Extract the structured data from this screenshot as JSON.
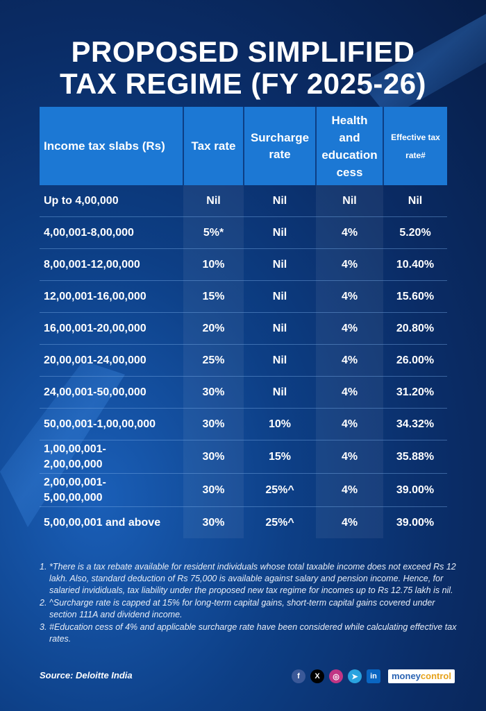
{
  "title": {
    "line1": "PROPOSED SIMPLIFIED",
    "line2": "TAX REGIME (FY 2025-26)"
  },
  "table": {
    "headers": {
      "slab": "Income tax slabs (Rs)",
      "rate": "Tax rate",
      "surcharge_line1": "Surcharge",
      "surcharge_line2": "rate",
      "cess_line1": "Health",
      "cess_line2": "and",
      "cess_line3": "education",
      "cess_line4": "cess",
      "effective_line1": "Effective tax",
      "effective_line2": "rate#"
    },
    "rows": [
      {
        "slab": "Up to 4,00,000",
        "rate": "Nil",
        "surcharge": "Nil",
        "cess": "Nil",
        "effective": "Nil"
      },
      {
        "slab": "4,00,001-8,00,000",
        "rate": "5%*",
        "surcharge": "Nil",
        "cess": "4%",
        "effective": "5.20%"
      },
      {
        "slab": "8,00,001-12,00,000",
        "rate": "10%",
        "surcharge": "Nil",
        "cess": "4%",
        "effective": "10.40%"
      },
      {
        "slab": "12,00,001-16,00,000",
        "rate": "15%",
        "surcharge": "Nil",
        "cess": "4%",
        "effective": "15.60%"
      },
      {
        "slab": "16,00,001-20,00,000",
        "rate": "20%",
        "surcharge": "Nil",
        "cess": "4%",
        "effective": "20.80%"
      },
      {
        "slab": "20,00,001-24,00,000",
        "rate": "25%",
        "surcharge": "Nil",
        "cess": "4%",
        "effective": "26.00%"
      },
      {
        "slab": "24,00,001-50,00,000",
        "rate": "30%",
        "surcharge": "Nil",
        "cess": "4%",
        "effective": "31.20%"
      },
      {
        "slab": "50,00,001-1,00,00,000",
        "rate": "30%",
        "surcharge": "10%",
        "cess": "4%",
        "effective": "34.32%"
      },
      {
        "slab_line1": "1,00,00,001-",
        "slab_line2": "2,00,00,000",
        "rate": "30%",
        "surcharge": "15%",
        "cess": "4%",
        "effective": "35.88%"
      },
      {
        "slab_line1": "2,00,00,001-",
        "slab_line2": "5,00,00,000",
        "rate": "30%",
        "surcharge": "25%^",
        "cess": "4%",
        "effective": "39.00%"
      },
      {
        "slab": "5,00,00,001 and above",
        "rate": "30%",
        "surcharge": "25%^",
        "cess": "4%",
        "effective": "39.00%"
      }
    ]
  },
  "notes": [
    {
      "num": "1.",
      "text": "*There is a tax rebate available for resident individuals whose total taxable income does not exceed Rs 12 lakh. Also, standard deduction of Rs 75,000 is available against salary and pension income. Hence, for salaried invididuals, tax liability under the proposed new tax regime for incomes up to Rs 12.75 lakh is nil."
    },
    {
      "num": "2.",
      "text": "^Surcharge rate is capped at 15% for long-term capital gains, short-term capital gains covered under section 111A and dividend income."
    },
    {
      "num": "3.",
      "text": "#Education cess of 4% and applicable surcharge rate have been considered while calculating effective tax rates."
    }
  ],
  "source": "Source: Deloitte India",
  "social": {
    "facebook": "f",
    "x": "X",
    "instagram": "◎",
    "telegram": "➤",
    "linkedin": "in"
  },
  "brand": {
    "part1": "money",
    "part2": "control"
  },
  "colors": {
    "header_bg": "#1c78d4",
    "page_bg": "#0d3f86"
  }
}
